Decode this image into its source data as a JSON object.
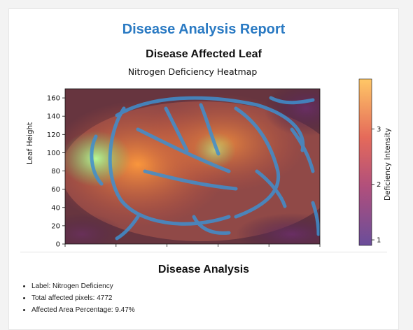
{
  "report": {
    "title": "Disease Analysis Report",
    "section_title": "Disease Affected Leaf"
  },
  "figure": {
    "title": "Nitrogen Deficiency Heatmap",
    "ylabel": "Leaf Height",
    "colorbar_label": "Deficiency Intensity",
    "y_ticks": [
      "0",
      "20",
      "40",
      "60",
      "80",
      "100",
      "120",
      "140",
      "160"
    ],
    "colorbar_ticks": [
      "1",
      "2",
      "3"
    ]
  },
  "chart_data": {
    "type": "heatmap",
    "title": "Nitrogen Deficiency Heatmap",
    "ylabel": "Leaf Height",
    "ylim": [
      0,
      170
    ],
    "y_ticks": [
      0,
      20,
      40,
      60,
      80,
      100,
      120,
      140,
      160
    ],
    "x_tick_labels": [],
    "colorbar": {
      "label": "Deficiency Intensity",
      "range": [
        0.9,
        3.9
      ],
      "ticks": [
        1,
        2,
        3
      ]
    }
  },
  "analysis": {
    "title": "Disease Analysis",
    "items": [
      "Label: Nitrogen Deficiency",
      "Total affected pixels: 4772",
      "Affected Area Percentage: 9.47%"
    ]
  },
  "colors": {
    "title_blue": "#2a7ac3",
    "overlay_blue": "#3f8fcf",
    "colorbar_low": "#6a4d9a",
    "colorbar_high": "#ffc766"
  }
}
